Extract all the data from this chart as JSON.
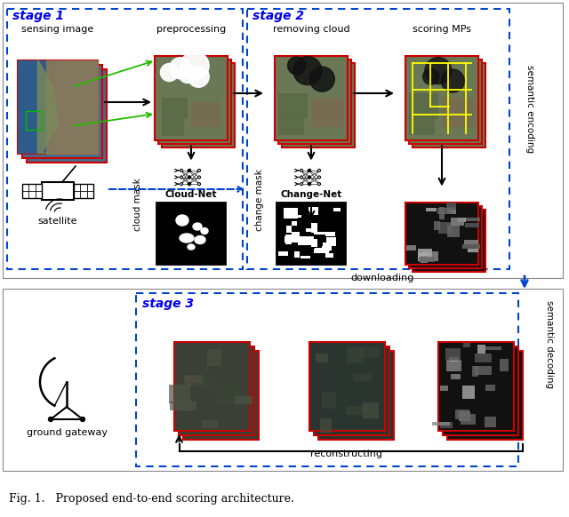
{
  "title": "Fig. 1.   Proposed end-to-end scoring architecture.",
  "title_fontsize": 9,
  "stage1_label": "stage 1",
  "stage2_label": "stage 2",
  "stage3_label": "stage 3",
  "stage_color": "#0000EE",
  "dashed_box_color": "#0044CC",
  "red_border_color": "#CC0000",
  "background_color": "#FFFFFF",
  "arrow_color": "#000000",
  "download_arrow_color": "#0044CC",
  "green_arrow_color": "#22BB00"
}
